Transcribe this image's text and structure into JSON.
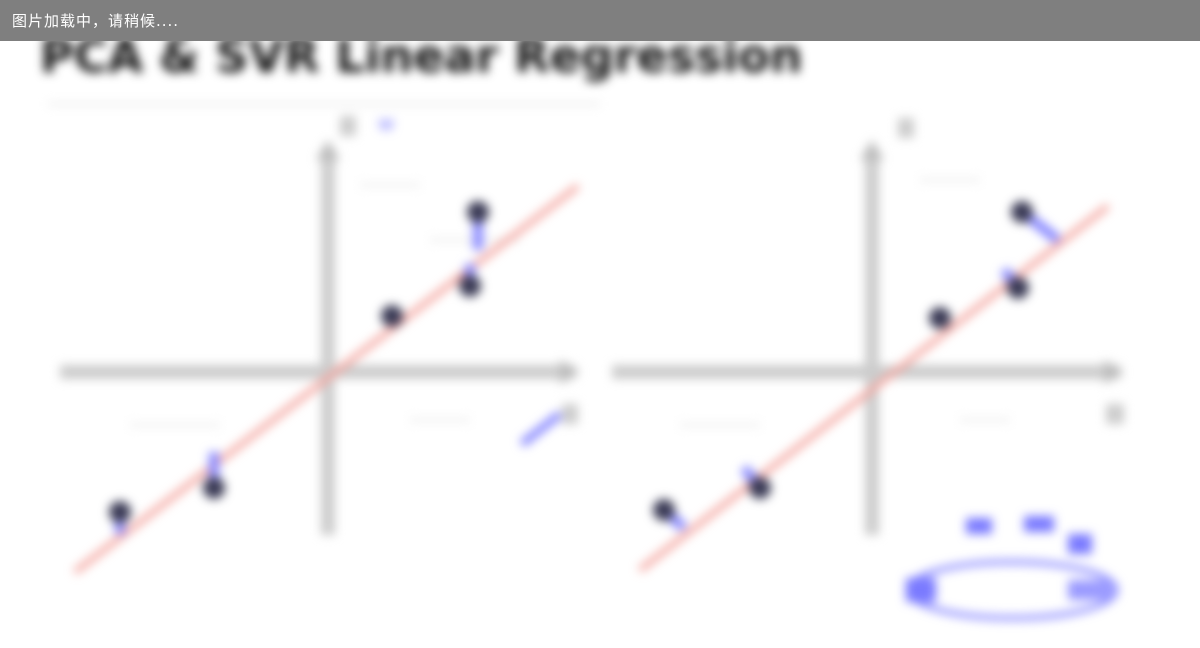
{
  "loading_bar": {
    "text": "图片加载中，请稍候...."
  },
  "image": {
    "description_role": "blurred-figure",
    "title_text": "PCA & SVR Linear Regression",
    "left_plot": {
      "y_axis_label": "y",
      "x_axis_label": "x",
      "legend_symbol": "w"
    },
    "right_plot": {
      "y_axis_label": "y",
      "x_axis_label": "x"
    }
  },
  "colors": {
    "loading_bar_bg": "#7f7f7f",
    "loading_text": "#ffffff",
    "fit_line": "#f4a6a0",
    "points": "#3a3a55",
    "projection": "#6a6aff",
    "axis": "#c8c8c8"
  }
}
